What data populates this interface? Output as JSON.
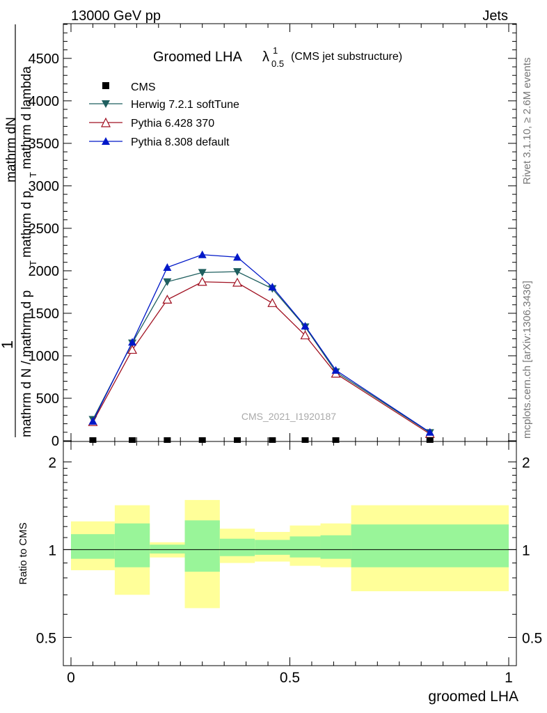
{
  "header": {
    "energy": "13000 GeV pp",
    "category": "Jets"
  },
  "title": {
    "main": "Groomed LHA",
    "lambda": "λ",
    "sup": "1",
    "sub": "0.5",
    "suffix": "(CMS jet substructure)"
  },
  "side_labels": {
    "rivet": "Rivet 3.1.10, ≥ 2.6M events",
    "source": "mcplots.cern.ch [arXiv:1306.3436]"
  },
  "watermark": "CMS_2021_I1920187",
  "ylabel_top": {
    "num": "mathrm dN",
    "den": "mathrm d N / mathrm d p_T mathrm d lambda",
    "frac_num": "1",
    "frac_den": "mathrm d N / mathrm d p_T mathrm d p_T mathrm d lambda"
  },
  "ylabel_top_lines": [
    "1",
    "mathrm d N / mathrm d p",
    "T",
    "mathrm d p",
    "T",
    "mathrm d lambda",
    "mathrm dN"
  ],
  "ylabel_ratio": "Ratio to CMS",
  "xlabel": "groomed LHA",
  "colors": {
    "herwig": "#1f5f5f",
    "pythia6": "#a01020",
    "pythia8": "#0018c8",
    "band_inner": "#99f599",
    "band_outer": "#ffff99"
  },
  "chart_data": {
    "type": "line",
    "x_range": [
      0,
      1
    ],
    "x_ticks": [
      "0",
      "0.5",
      "1"
    ],
    "y_top_range": [
      0,
      4900
    ],
    "y_top_ticks": [
      "500",
      "1000",
      "1500",
      "2000",
      "2500",
      "3000",
      "3500",
      "4000",
      "4500"
    ],
    "y_ratio_ticks": [
      "0.5",
      "1",
      "2"
    ],
    "y_ratio_range": [
      0.4,
      2.35
    ],
    "x": [
      0.05,
      0.14,
      0.22,
      0.3,
      0.38,
      0.46,
      0.535,
      0.605,
      0.82
    ],
    "legend": [
      "CMS",
      "Herwig 7.2.1 softTune",
      "Pythia 6.428 370",
      "Pythia 8.308 default"
    ],
    "series": [
      {
        "name": "CMS",
        "values": [
          0,
          0,
          0,
          0,
          0,
          0,
          0,
          0,
          0
        ]
      },
      {
        "name": "Herwig 7.2.1 softTune",
        "values": [
          250,
          1150,
          1870,
          1980,
          1990,
          1790,
          1340,
          810,
          95
        ]
      },
      {
        "name": "Pythia 6.428 370",
        "values": [
          220,
          1070,
          1660,
          1870,
          1860,
          1620,
          1240,
          790,
          80
        ]
      },
      {
        "name": "Pythia 8.308 default",
        "values": [
          230,
          1160,
          2040,
          2190,
          2160,
          1810,
          1350,
          830,
          100
        ]
      }
    ],
    "ratio_bands": [
      {
        "x0": 0.0,
        "x1": 0.1,
        "inner": [
          0.93,
          1.13
        ],
        "outer": [
          0.85,
          1.25
        ]
      },
      {
        "x0": 0.1,
        "x1": 0.18,
        "inner": [
          0.87,
          1.23
        ],
        "outer": [
          0.7,
          1.42
        ]
      },
      {
        "x0": 0.18,
        "x1": 0.26,
        "inner": [
          0.97,
          1.04
        ],
        "outer": [
          0.94,
          1.06
        ]
      },
      {
        "x0": 0.26,
        "x1": 0.34,
        "inner": [
          0.84,
          1.26
        ],
        "outer": [
          0.63,
          1.48
        ]
      },
      {
        "x0": 0.34,
        "x1": 0.42,
        "inner": [
          0.95,
          1.09
        ],
        "outer": [
          0.9,
          1.18
        ]
      },
      {
        "x0": 0.42,
        "x1": 0.5,
        "inner": [
          0.96,
          1.08
        ],
        "outer": [
          0.91,
          1.15
        ]
      },
      {
        "x0": 0.5,
        "x1": 0.57,
        "inner": [
          0.94,
          1.11
        ],
        "outer": [
          0.88,
          1.21
        ]
      },
      {
        "x0": 0.57,
        "x1": 0.64,
        "inner": [
          0.93,
          1.12
        ],
        "outer": [
          0.87,
          1.23
        ]
      },
      {
        "x0": 0.64,
        "x1": 1.0,
        "inner": [
          0.87,
          1.22
        ],
        "outer": [
          0.72,
          1.42
        ]
      }
    ]
  }
}
